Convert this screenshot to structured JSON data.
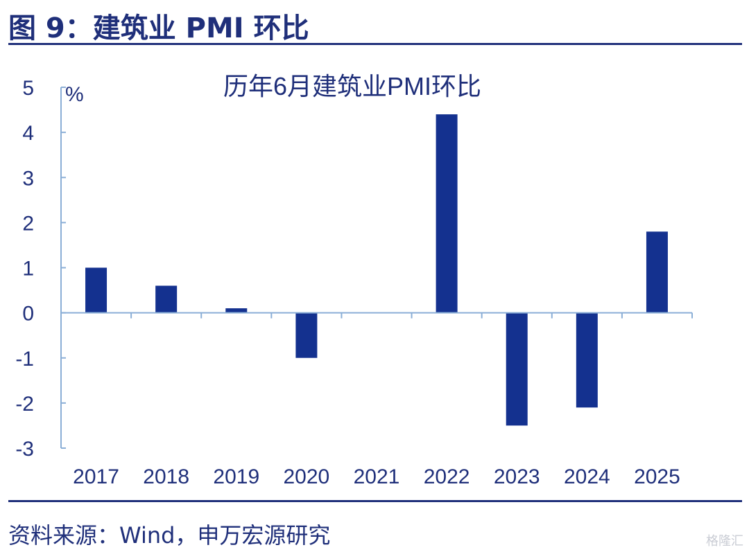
{
  "figure": {
    "title": "图 9：建筑业 PMI 环比",
    "source": "资料来源：Wind，申万宏源研究",
    "watermark": "格隆汇"
  },
  "colors": {
    "bar": "#14318f",
    "axis": "#8aaed6",
    "text": "#1f2f7a"
  },
  "chart_data": {
    "type": "bar",
    "title": "历年6月建筑业PMI环比",
    "ylabel": "%",
    "xlabel": "",
    "categories": [
      "2017",
      "2018",
      "2019",
      "2020",
      "2021",
      "2022",
      "2023",
      "2024",
      "2025"
    ],
    "values": [
      1.0,
      0.6,
      0.1,
      -1.0,
      0.0,
      4.4,
      -2.5,
      -2.1,
      1.8
    ],
    "ylim": [
      -3,
      5
    ],
    "yticks": [
      "5",
      "4",
      "3",
      "2",
      "1",
      "0",
      "-1",
      "-2",
      "-3"
    ],
    "grid": false,
    "legend": "none"
  }
}
